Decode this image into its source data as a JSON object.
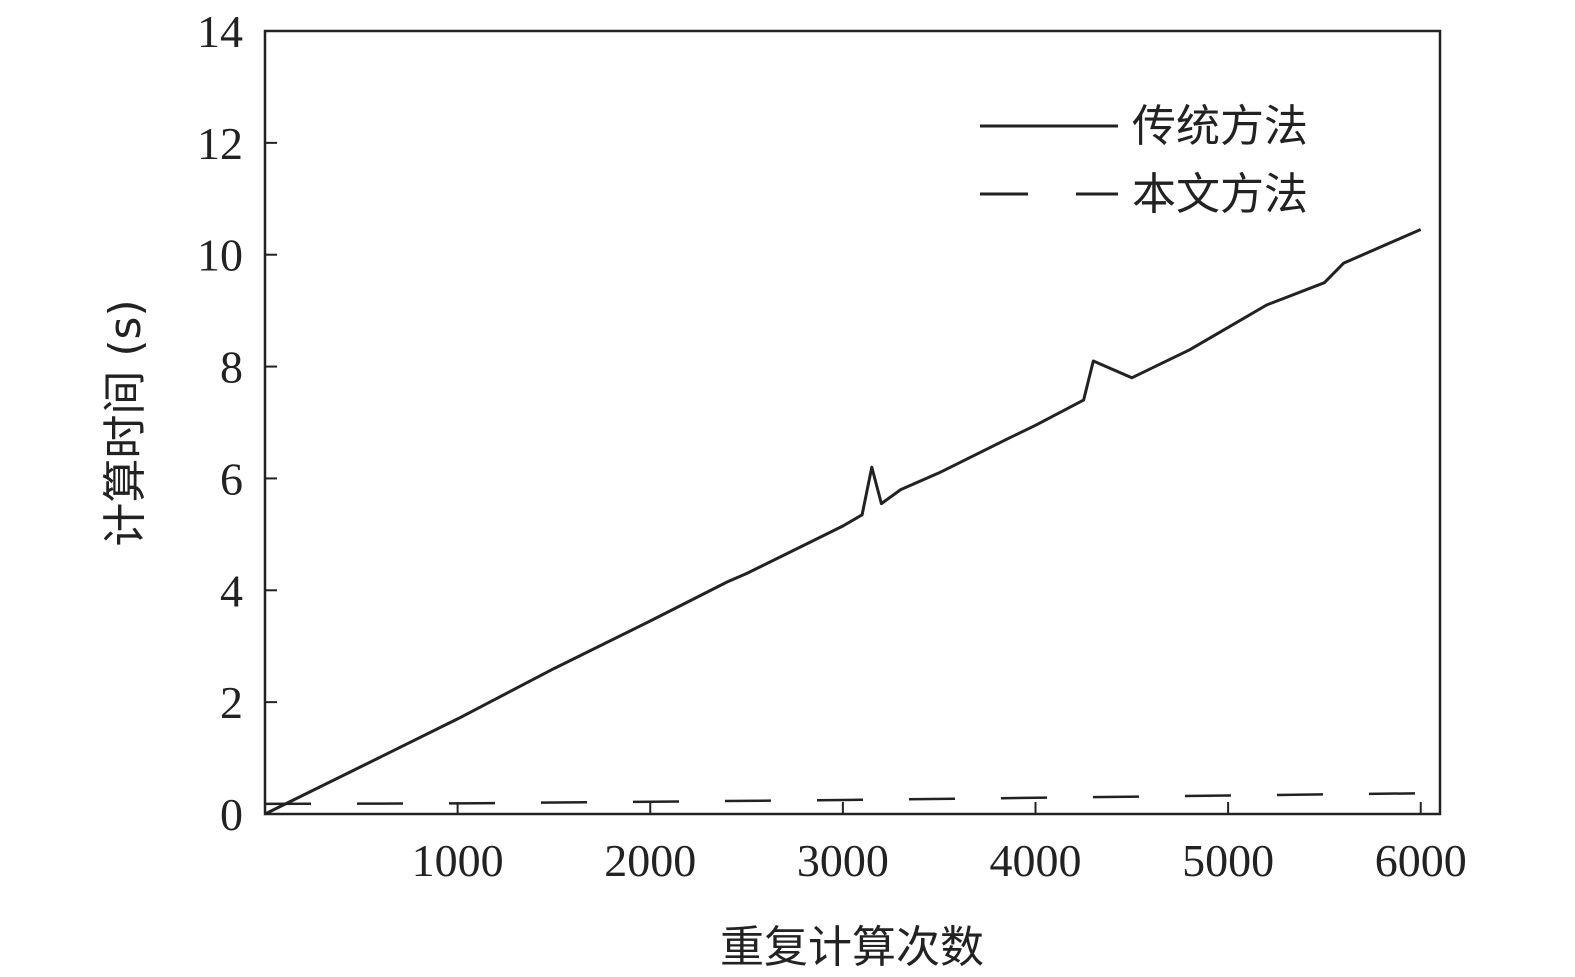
{
  "chart_data": {
    "type": "line",
    "xlabel": "重复计算次数",
    "ylabel": "计算时间 (s)",
    "xlim": [
      0,
      6100
    ],
    "ylim": [
      0,
      14
    ],
    "x_ticks": [
      1000,
      2000,
      3000,
      4000,
      5000,
      6000
    ],
    "x_tick_labels": [
      "1000",
      "2000",
      "3000",
      "4000",
      "5000",
      "6000"
    ],
    "y_ticks": [
      0,
      2,
      4,
      6,
      8,
      10,
      12,
      14
    ],
    "y_tick_labels": [
      "0",
      "2",
      "4",
      "6",
      "8",
      "10",
      "12",
      "14"
    ],
    "grid": false,
    "legend_position": "top-right",
    "series": [
      {
        "name": "传统方法",
        "style": "solid",
        "color": "#222222",
        "x": [
          0,
          500,
          1000,
          1500,
          2000,
          2400,
          2500,
          3000,
          3100,
          3150,
          3200,
          3300,
          3500,
          3850,
          4000,
          4250,
          4300,
          4500,
          4800,
          5000,
          5200,
          5500,
          5600,
          5900,
          6000
        ],
        "y": [
          0,
          0.85,
          1.7,
          2.6,
          3.45,
          4.15,
          4.3,
          5.15,
          5.35,
          6.2,
          5.55,
          5.8,
          6.1,
          6.7,
          6.95,
          7.4,
          8.1,
          7.8,
          8.3,
          8.7,
          9.1,
          9.5,
          9.85,
          10.3,
          10.45
        ]
      },
      {
        "name": "本文方法",
        "style": "dashed",
        "color": "#222222",
        "x": [
          0,
          1000,
          2000,
          3000,
          4000,
          5000,
          6000
        ],
        "y": [
          0.18,
          0.19,
          0.22,
          0.25,
          0.29,
          0.33,
          0.37
        ]
      }
    ]
  }
}
